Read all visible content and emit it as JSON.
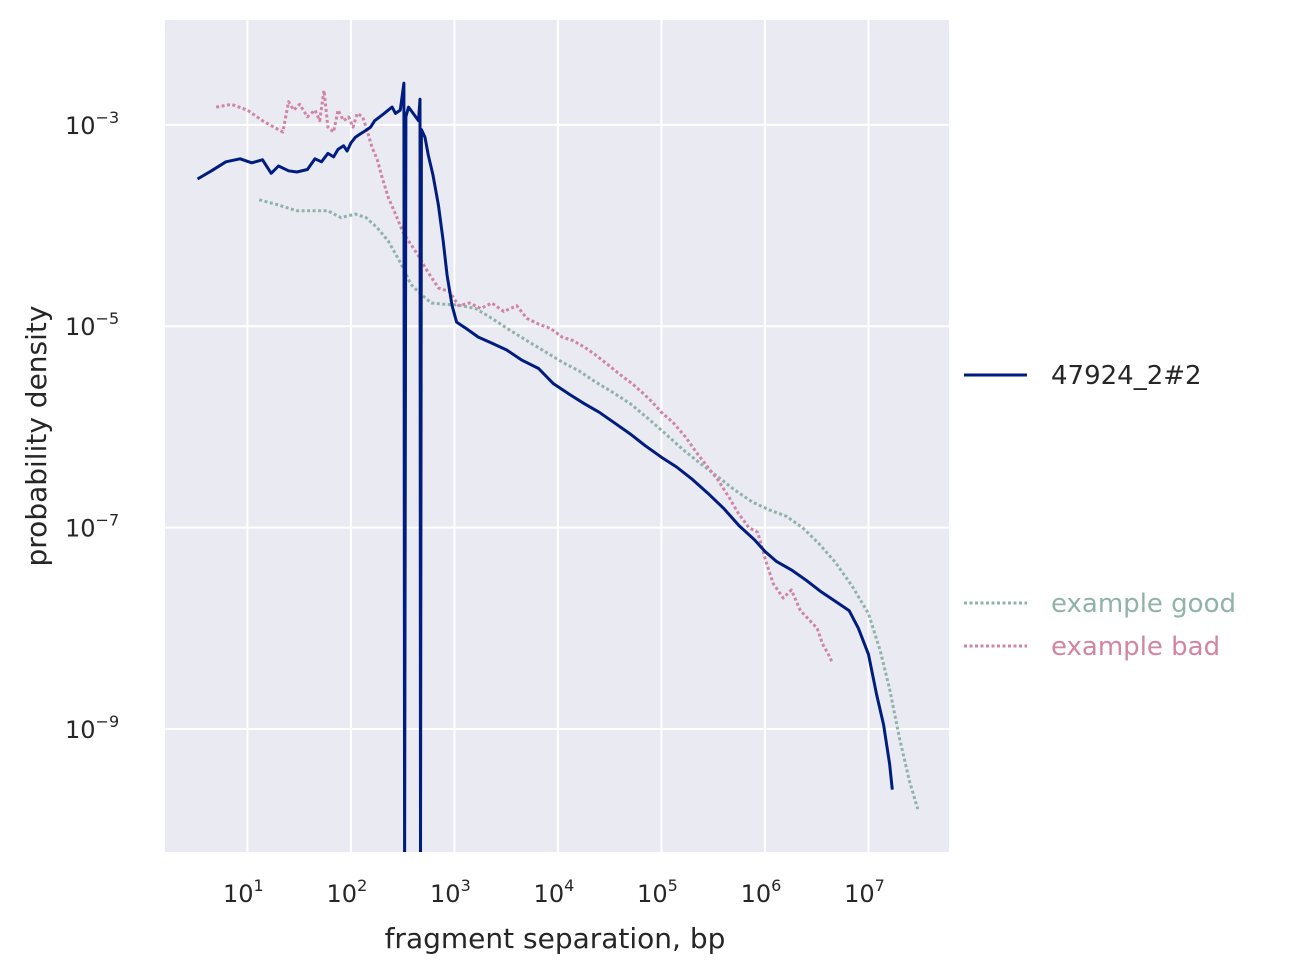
{
  "chart_data": {
    "type": "line",
    "xlabel": "fragment separation, bp",
    "ylabel": "probability density",
    "x_scale": "log",
    "y_scale": "log",
    "xlim": [
      1.6,
      60000000
    ],
    "ylim": [
      6e-11,
      0.011
    ],
    "grid": true,
    "legend_placement": "outside right",
    "x_ticks": [
      {
        "base": "10",
        "exp": "1",
        "value": 10
      },
      {
        "base": "10",
        "exp": "2",
        "value": 100
      },
      {
        "base": "10",
        "exp": "3",
        "value": 1000
      },
      {
        "base": "10",
        "exp": "4",
        "value": 10000
      },
      {
        "base": "10",
        "exp": "5",
        "value": 100000
      },
      {
        "base": "10",
        "exp": "6",
        "value": 1000000
      },
      {
        "base": "10",
        "exp": "7",
        "value": 10000000
      }
    ],
    "y_ticks": [
      {
        "base": "10",
        "exp": "−3",
        "value": 0.001
      },
      {
        "base": "10",
        "exp": "−5",
        "value": 1e-05
      },
      {
        "base": "10",
        "exp": "−7",
        "value": 1e-07
      },
      {
        "base": "10",
        "exp": "−9",
        "value": 1e-09
      }
    ],
    "series": [
      {
        "name": "47924_2#2",
        "color": "#001c7f",
        "style": "solid",
        "points": [
          [
            3.3,
            0.00029
          ],
          [
            4.5,
            0.00035
          ],
          [
            6.2,
            0.00043
          ],
          [
            8.5,
            0.00046
          ],
          [
            11,
            0.00042
          ],
          [
            14,
            0.00045
          ],
          [
            17,
            0.00033
          ],
          [
            20,
            0.00039
          ],
          [
            25,
            0.00035
          ],
          [
            30,
            0.00034
          ],
          [
            38,
            0.00036
          ],
          [
            45,
            0.00046
          ],
          [
            52,
            0.00043
          ],
          [
            60,
            0.00052
          ],
          [
            68,
            0.00048
          ],
          [
            75,
            0.00057
          ],
          [
            85,
            0.00062
          ],
          [
            92,
            0.00055
          ],
          [
            100,
            0.00066
          ],
          [
            110,
            0.00075
          ],
          [
            125,
            0.00082
          ],
          [
            140,
            0.00088
          ],
          [
            155,
            0.00095
          ],
          [
            170,
            0.0011
          ],
          [
            190,
            0.0012
          ],
          [
            210,
            0.0013
          ],
          [
            230,
            0.0014
          ],
          [
            250,
            0.0015
          ],
          [
            270,
            0.0013
          ],
          [
            300,
            0.0014
          ],
          [
            325,
            0.0026
          ],
          [
            330,
            4e-11
          ],
          [
            340,
            0.0012
          ],
          [
            360,
            0.0015
          ],
          [
            400,
            0.0013
          ],
          [
            450,
            0.0011
          ],
          [
            465,
            0.0018
          ],
          [
            470,
            4e-11
          ],
          [
            480,
            0.0009
          ],
          [
            520,
            0.00075
          ],
          [
            560,
            0.0005
          ],
          [
            620,
            0.00032
          ],
          [
            700,
            0.00016
          ],
          [
            780,
            7e-05
          ],
          [
            850,
            3.2e-05
          ],
          [
            950,
            1.6e-05
          ],
          [
            1050,
            1.1e-05
          ],
          [
            1300,
            9.5e-06
          ],
          [
            1700,
            7.8e-06
          ],
          [
            2300,
            6.8e-06
          ],
          [
            3200,
            5.8e-06
          ],
          [
            4500,
            4.6e-06
          ],
          [
            6500,
            3.8e-06
          ],
          [
            9000,
            2.7e-06
          ],
          [
            13000,
            2.1e-06
          ],
          [
            18000,
            1.7e-06
          ],
          [
            25000,
            1.4e-06
          ],
          [
            35000,
            1.1e-06
          ],
          [
            50000,
            8.5e-07
          ],
          [
            70000,
            6.5e-07
          ],
          [
            100000,
            5e-07
          ],
          [
            140000,
            4e-07
          ],
          [
            200000,
            3e-07
          ],
          [
            280000,
            2.2e-07
          ],
          [
            400000,
            1.55e-07
          ],
          [
            560000,
            1.05e-07
          ],
          [
            800000,
            7.5e-08
          ],
          [
            1000000,
            5.8e-08
          ],
          [
            1300000,
            4.6e-08
          ],
          [
            1800000,
            3.8e-08
          ],
          [
            2500000,
            3e-08
          ],
          [
            3500000,
            2.3e-08
          ],
          [
            5000000,
            1.8e-08
          ],
          [
            6500000,
            1.5e-08
          ],
          [
            8000000,
            1e-08
          ],
          [
            10000000,
            5.5e-09
          ],
          [
            12000000,
            2.2e-09
          ],
          [
            14000000,
            1.1e-09
          ],
          [
            16000000,
            4.5e-10
          ],
          [
            17000000,
            2.5e-10
          ]
        ]
      },
      {
        "name": "example good",
        "color": "#8fb3a8",
        "style": "dotted",
        "points": [
          [
            13,
            0.00018
          ],
          [
            20,
            0.00016
          ],
          [
            30,
            0.00014
          ],
          [
            45,
            0.00014
          ],
          [
            60,
            0.00014
          ],
          [
            80,
            0.00012
          ],
          [
            110,
            0.00013
          ],
          [
            140,
            0.00012
          ],
          [
            180,
            9.5e-05
          ],
          [
            230,
            7e-05
          ],
          [
            300,
            4.3e-05
          ],
          [
            380,
            2.6e-05
          ],
          [
            470,
            2.1e-05
          ],
          [
            600,
            1.7e-05
          ],
          [
            800,
            1.65e-05
          ],
          [
            1100,
            1.62e-05
          ],
          [
            1600,
            1.5e-05
          ],
          [
            2300,
            1.2e-05
          ],
          [
            3400,
            9.2e-06
          ],
          [
            5000,
            7.2e-06
          ],
          [
            7500,
            5.6e-06
          ],
          [
            11000,
            4.4e-06
          ],
          [
            16000,
            3.6e-06
          ],
          [
            23000,
            2.8e-06
          ],
          [
            34000,
            2.2e-06
          ],
          [
            50000,
            1.7e-06
          ],
          [
            75000,
            1.2e-06
          ],
          [
            110000,
            8.5e-07
          ],
          [
            160000,
            6e-07
          ],
          [
            240000,
            4.3e-07
          ],
          [
            350000,
            3.2e-07
          ],
          [
            500000,
            2.4e-07
          ],
          [
            750000,
            1.8e-07
          ],
          [
            1100000,
            1.5e-07
          ],
          [
            1600000,
            1.3e-07
          ],
          [
            2300000,
            1e-07
          ],
          [
            3300000,
            7e-08
          ],
          [
            4800000,
            4.5e-08
          ],
          [
            7000000,
            2.6e-08
          ],
          [
            10000000,
            1.4e-08
          ],
          [
            13000000,
            6e-09
          ],
          [
            16000000,
            2.5e-09
          ],
          [
            20000000,
            8e-10
          ],
          [
            25000000,
            3e-10
          ],
          [
            30000000,
            1.6e-10
          ]
        ]
      },
      {
        "name": "example bad",
        "color": "#d085a5",
        "style": "dotted",
        "points": [
          [
            5,
            0.0015
          ],
          [
            7,
            0.0016
          ],
          [
            10,
            0.0014
          ],
          [
            14,
            0.0011
          ],
          [
            18,
            0.00095
          ],
          [
            22,
            0.00085
          ],
          [
            25,
            0.0017
          ],
          [
            28,
            0.0014
          ],
          [
            32,
            0.0016
          ],
          [
            38,
            0.0012
          ],
          [
            45,
            0.0014
          ],
          [
            50,
            0.0011
          ],
          [
            55,
            0.0022
          ],
          [
            60,
            0.00095
          ],
          [
            68,
            0.00085
          ],
          [
            75,
            0.0014
          ],
          [
            85,
            0.0011
          ],
          [
            95,
            0.0012
          ],
          [
            105,
            0.00095
          ],
          [
            115,
            0.0013
          ],
          [
            130,
            0.0012
          ],
          [
            145,
            0.00085
          ],
          [
            160,
            0.0006
          ],
          [
            180,
            0.00045
          ],
          [
            200,
            0.0003
          ],
          [
            230,
            0.00019
          ],
          [
            270,
            0.00013
          ],
          [
            320,
            8.5e-05
          ],
          [
            380,
            6.5e-05
          ],
          [
            450,
            5e-05
          ],
          [
            550,
            3.5e-05
          ],
          [
            700,
            2.4e-05
          ],
          [
            900,
            2.2e-05
          ],
          [
            1100,
            1.6e-05
          ],
          [
            1400,
            1.7e-05
          ],
          [
            1800,
            1.5e-05
          ],
          [
            2300,
            1.7e-05
          ],
          [
            3000,
            1.4e-05
          ],
          [
            4000,
            1.6e-05
          ],
          [
            5000,
            1.2e-05
          ],
          [
            6500,
            1.05e-05
          ],
          [
            8500,
            9.5e-06
          ],
          [
            11000,
            7.8e-06
          ],
          [
            14000,
            7.2e-06
          ],
          [
            18000,
            6.2e-06
          ],
          [
            23000,
            5.2e-06
          ],
          [
            30000,
            4.2e-06
          ],
          [
            40000,
            3.3e-06
          ],
          [
            52000,
            2.7e-06
          ],
          [
            65000,
            2.2e-06
          ],
          [
            80000,
            1.8e-06
          ],
          [
            100000,
            1.4e-06
          ],
          [
            130000,
            1.1e-06
          ],
          [
            170000,
            8e-07
          ],
          [
            220000,
            5.5e-07
          ],
          [
            280000,
            4e-07
          ],
          [
            350000,
            3e-07
          ],
          [
            450000,
            2e-07
          ],
          [
            550000,
            1.4e-07
          ],
          [
            700000,
            1e-07
          ],
          [
            850000,
            9e-08
          ],
          [
            1000000,
            5e-08
          ],
          [
            1200000,
            2.8e-08
          ],
          [
            1500000,
            2e-08
          ],
          [
            1800000,
            2.4e-08
          ],
          [
            2200000,
            1.5e-08
          ],
          [
            2700000,
            1.2e-08
          ],
          [
            3200000,
            1e-08
          ],
          [
            3600000,
            7e-09
          ],
          [
            4100000,
            5.5e-09
          ],
          [
            4500000,
            4.5e-09
          ]
        ]
      }
    ]
  }
}
